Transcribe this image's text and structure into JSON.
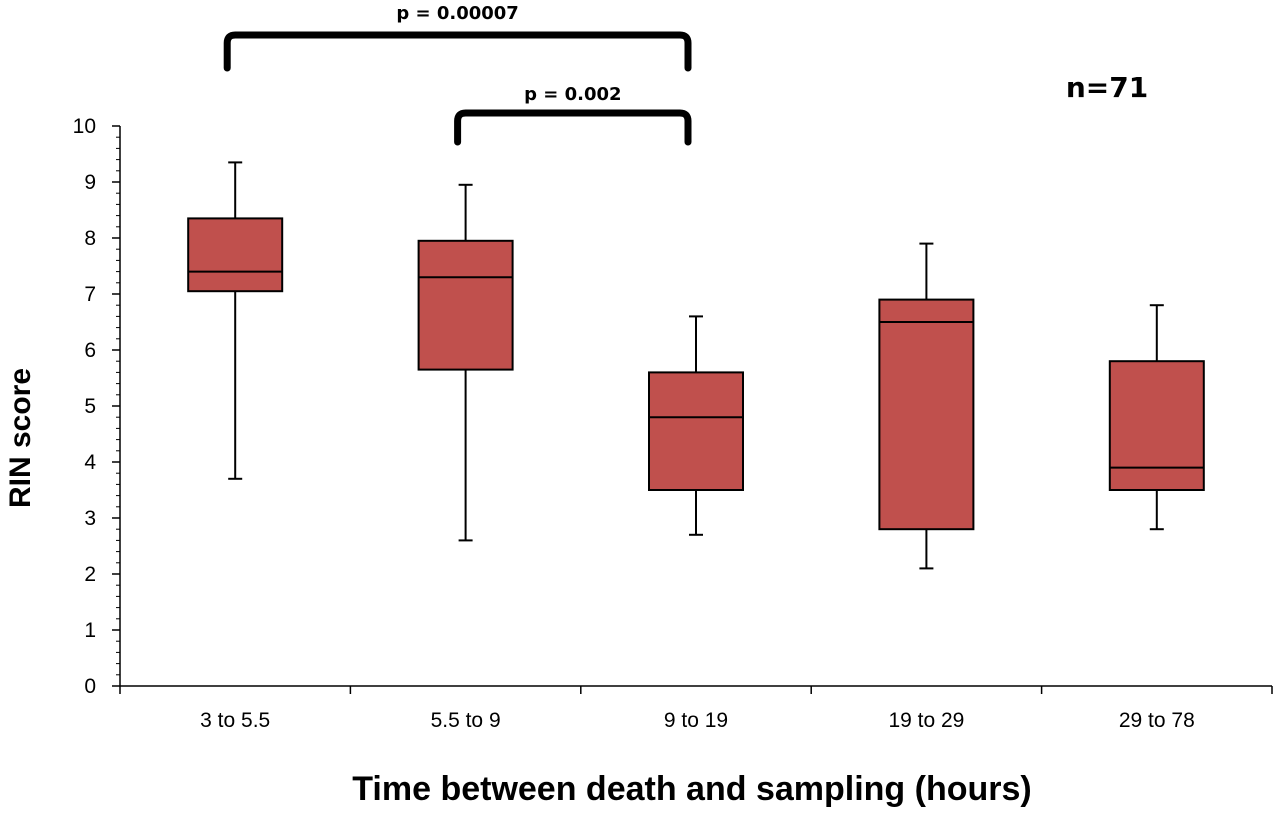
{
  "chart_data": {
    "type": "box",
    "xlabel": "Time between death and sampling (hours)",
    "ylabel": "RIN score",
    "ylim": [
      0,
      10
    ],
    "yticks": [
      0,
      1,
      2,
      3,
      4,
      5,
      6,
      7,
      8,
      9,
      10
    ],
    "categories": [
      "3 to 5.5",
      "5.5 to 9",
      "9 to 19",
      "19 to 29",
      "29 to 78"
    ],
    "boxes": [
      {
        "category": "3 to 5.5",
        "min": 3.7,
        "q1": 7.05,
        "median": 7.4,
        "q3": 8.35,
        "max": 9.35
      },
      {
        "category": "5.5 to 9",
        "min": 2.6,
        "q1": 5.65,
        "median": 7.3,
        "q3": 7.95,
        "max": 8.95
      },
      {
        "category": "9 to 19",
        "min": 2.7,
        "q1": 3.5,
        "median": 4.8,
        "q3": 5.6,
        "max": 6.6
      },
      {
        "category": "19 to 29",
        "min": 2.1,
        "q1": 2.8,
        "median": 6.5,
        "q3": 6.9,
        "max": 7.9
      },
      {
        "category": "29 to 78",
        "min": 2.8,
        "q1": 3.5,
        "median": 3.9,
        "q3": 5.8,
        "max": 6.8
      }
    ],
    "box_color": "#c0504d",
    "annotations": {
      "n_label": "n=71",
      "brackets": [
        {
          "from": "3 to 5.5",
          "to": "9 to 19",
          "label": "p = 0.00007"
        },
        {
          "from": "5.5 to 9",
          "to": "9 to 19",
          "label": "p = 0.002"
        }
      ]
    }
  }
}
